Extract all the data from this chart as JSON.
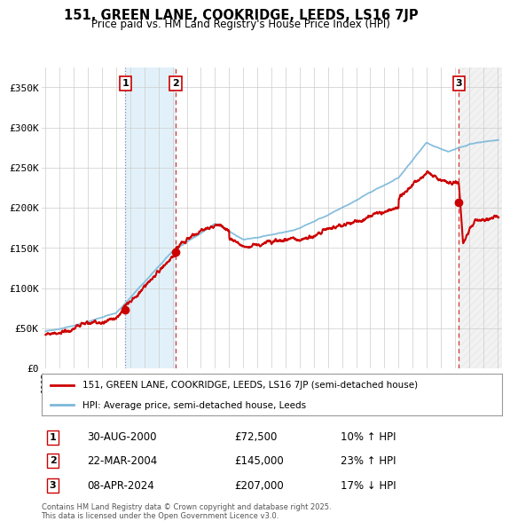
{
  "title": "151, GREEN LANE, COOKRIDGE, LEEDS, LS16 7JP",
  "subtitle": "Price paid vs. HM Land Registry's House Price Index (HPI)",
  "ylabel_ticks": [
    "£0",
    "£50K",
    "£100K",
    "£150K",
    "£200K",
    "£250K",
    "£300K",
    "£350K"
  ],
  "ytick_values": [
    0,
    50000,
    100000,
    150000,
    200000,
    250000,
    300000,
    350000
  ],
  "ylim": [
    0,
    375000
  ],
  "xlim_start": 1994.7,
  "xlim_end": 2027.3,
  "xtick_years": [
    1995,
    1996,
    1997,
    1998,
    1999,
    2000,
    2001,
    2002,
    2003,
    2004,
    2005,
    2006,
    2007,
    2008,
    2009,
    2010,
    2011,
    2012,
    2013,
    2014,
    2015,
    2016,
    2017,
    2018,
    2019,
    2020,
    2021,
    2022,
    2023,
    2024,
    2025,
    2026,
    2027
  ],
  "sale_times": [
    2000.66,
    2004.22,
    2024.27
  ],
  "sale_prices": [
    72500,
    145000,
    207000
  ],
  "sale_labels": [
    "1",
    "2",
    "3"
  ],
  "purchase_info": [
    {
      "label": "1",
      "date": "30-AUG-2000",
      "price": "£72,500",
      "hpi": "10% ↑ HPI"
    },
    {
      "label": "2",
      "date": "22-MAR-2004",
      "price": "£145,000",
      "hpi": "23% ↑ HPI"
    },
    {
      "label": "3",
      "date": "08-APR-2024",
      "price": "£207,000",
      "hpi": "17% ↓ HPI"
    }
  ],
  "legend_line1": "151, GREEN LANE, COOKRIDGE, LEEDS, LS16 7JP (semi-detached house)",
  "legend_line2": "HPI: Average price, semi-detached house, Leeds",
  "footnote": "Contains HM Land Registry data © Crown copyright and database right 2025.\nThis data is licensed under the Open Government Licence v3.0.",
  "hpi_color": "#7ab8d9",
  "price_color": "#cc0000",
  "grid_color": "#cccccc",
  "background_color": "#ffffff"
}
